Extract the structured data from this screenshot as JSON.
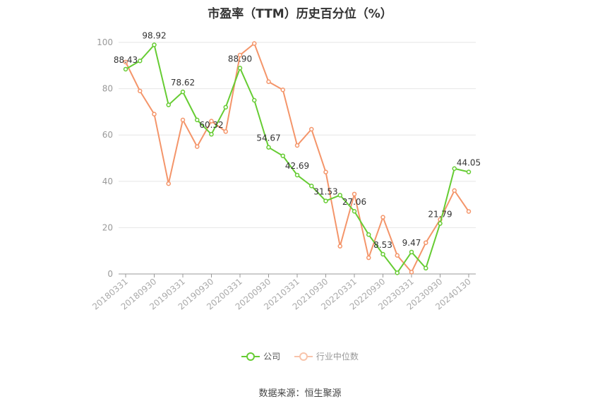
{
  "chart_data": {
    "type": "line",
    "title": "市盈率（TTM）历史百分位（%）",
    "source": "数据来源：恒生聚源",
    "ylim": [
      0,
      100
    ],
    "yticks": [
      0,
      20,
      40,
      60,
      80,
      100
    ],
    "x_tick_labels": [
      "20180331",
      "20180930",
      "20190331",
      "20190930",
      "20200331",
      "20200930",
      "20210331",
      "20210930",
      "20220331",
      "20220930",
      "20230331",
      "20230930",
      "20240130"
    ],
    "x": [
      "20180331",
      "20180630",
      "20180930",
      "20181231",
      "20190331",
      "20190630",
      "20190930",
      "20191231",
      "20200331",
      "20200630",
      "20200930",
      "20201231",
      "20210331",
      "20210630",
      "20210930",
      "20211231",
      "20220331",
      "20220630",
      "20220930",
      "20221231",
      "20230331",
      "20230630",
      "20230930",
      "20231231",
      "20240130"
    ],
    "series": [
      {
        "name": "公司",
        "color": "#66cc33",
        "values": [
          88.43,
          92.0,
          98.92,
          73.0,
          78.62,
          66.5,
          60.32,
          72.0,
          88.9,
          75.0,
          54.67,
          51.0,
          42.69,
          38.0,
          31.53,
          34.0,
          27.06,
          17.0,
          8.53,
          0.5,
          9.47,
          2.5,
          21.79,
          45.5,
          44.05
        ],
        "labels": [
          "88.43",
          "",
          "98.92",
          "",
          "78.62",
          "",
          "60.32",
          "",
          "88.90",
          "",
          "54.67",
          "",
          "42.69",
          "",
          "31.53",
          "",
          "27.06",
          "",
          "8.53",
          "",
          "9.47",
          "",
          "21.79",
          "",
          "44.05"
        ]
      },
      {
        "name": "行业中位数",
        "color": "#f4956a",
        "values": [
          91.5,
          79.0,
          69.0,
          39.0,
          66.5,
          55.0,
          66.0,
          61.5,
          94.5,
          99.5,
          83.0,
          79.5,
          55.5,
          62.5,
          44.0,
          12.0,
          34.5,
          7.0,
          24.5,
          8.0,
          0.8,
          13.5,
          23.5,
          36.0,
          27.0
        ],
        "labels": []
      }
    ],
    "grid": true,
    "legend_position": "bottom"
  }
}
